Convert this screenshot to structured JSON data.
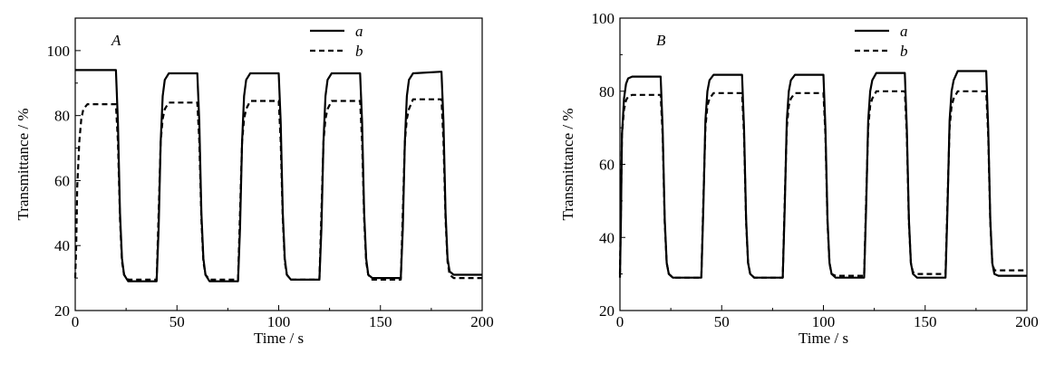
{
  "chart_data": [
    {
      "type": "line",
      "panel_label": "A",
      "xlabel": "Time / s",
      "ylabel": "Transmittance / %",
      "xlim": [
        0,
        200
      ],
      "ylim": [
        20,
        110
      ],
      "xticks": [
        0,
        50,
        100,
        150,
        200
      ],
      "yticks": [
        20,
        40,
        60,
        80,
        100
      ],
      "legend_position": "top-right",
      "series": [
        {
          "name": "a",
          "line_style": "solid",
          "x": [
            0,
            20,
            21,
            22,
            23,
            24,
            26,
            40,
            41,
            42,
            43,
            44,
            46,
            60,
            61,
            62,
            63,
            64,
            66,
            80,
            81,
            82,
            83,
            84,
            86,
            100,
            101,
            102,
            103,
            104,
            106,
            120,
            121,
            122,
            123,
            124,
            126,
            140,
            141,
            142,
            143,
            144,
            146,
            160,
            161,
            162,
            163,
            164,
            166,
            180,
            181,
            182,
            183,
            184,
            186,
            200
          ],
          "y": [
            94,
            94,
            78,
            50,
            36,
            31,
            29,
            29,
            45,
            72,
            86,
            91,
            93,
            93,
            78,
            50,
            36,
            31,
            29,
            29,
            45,
            72,
            86,
            91,
            93,
            93,
            78,
            50,
            36,
            31,
            29.5,
            29.5,
            45,
            72,
            86,
            91,
            93,
            93,
            78,
            50,
            36,
            31,
            30,
            30,
            45,
            72,
            86,
            91,
            93,
            93.5,
            78,
            50,
            36,
            32,
            31,
            31
          ]
        },
        {
          "name": "b",
          "line_style": "dashed",
          "x": [
            0,
            0.5,
            1,
            2,
            3,
            4,
            6,
            20,
            21,
            22,
            23,
            24,
            26,
            40,
            41,
            42,
            43,
            44,
            46,
            60,
            61,
            62,
            63,
            64,
            66,
            80,
            81,
            82,
            83,
            84,
            86,
            100,
            101,
            102,
            103,
            104,
            106,
            120,
            121,
            122,
            123,
            124,
            126,
            140,
            141,
            142,
            143,
            144,
            146,
            160,
            161,
            162,
            163,
            164,
            166,
            180,
            181,
            182,
            183,
            184,
            186,
            200
          ],
          "y": [
            30,
            40,
            58,
            72,
            79,
            82,
            83.5,
            83.5,
            72,
            48,
            35,
            31,
            29.5,
            29.5,
            50,
            72,
            79,
            82,
            84,
            84,
            72,
            48,
            35,
            31,
            29.5,
            29.5,
            50,
            72,
            79,
            82,
            84.5,
            84.5,
            72,
            48,
            35,
            31,
            29.5,
            29.5,
            50,
            72,
            79,
            82,
            84.5,
            84.5,
            72,
            48,
            35,
            31,
            29.5,
            29.5,
            50,
            72,
            79,
            82,
            85,
            85,
            72,
            48,
            35,
            31,
            30,
            30
          ]
        }
      ]
    },
    {
      "type": "line",
      "panel_label": "B",
      "xlabel": "Time / s",
      "ylabel": "Transmittance / %",
      "xlim": [
        0,
        200
      ],
      "ylim": [
        20,
        100
      ],
      "xticks": [
        0,
        50,
        100,
        150,
        200
      ],
      "yticks": [
        20,
        40,
        60,
        80,
        100
      ],
      "legend_position": "top-right",
      "series": [
        {
          "name": "a",
          "line_style": "solid",
          "x": [
            0,
            0.5,
            1,
            2,
            3,
            4,
            6,
            20,
            21,
            22,
            23,
            24,
            26,
            40,
            41,
            42,
            43,
            44,
            46,
            60,
            61,
            62,
            63,
            64,
            66,
            80,
            81,
            82,
            83,
            84,
            86,
            100,
            101,
            102,
            103,
            104,
            106,
            120,
            121,
            122,
            123,
            124,
            126,
            140,
            141,
            142,
            143,
            144,
            146,
            160,
            161,
            162,
            163,
            164,
            166,
            180,
            181,
            182,
            183,
            184,
            186,
            200
          ],
          "y": [
            29,
            45,
            68,
            78,
            82,
            83.5,
            84,
            84,
            70,
            45,
            33,
            30,
            29,
            29,
            48,
            72,
            80,
            83,
            84.5,
            84.5,
            70,
            45,
            33,
            30,
            29,
            29,
            48,
            72,
            80,
            83,
            84.5,
            84.5,
            70,
            45,
            33,
            30,
            29,
            29,
            48,
            72,
            80,
            83,
            85,
            85,
            70,
            45,
            33,
            30,
            29,
            29,
            48,
            72,
            80,
            83,
            85.5,
            85.5,
            70,
            45,
            33,
            30,
            29.5,
            29.5
          ]
        },
        {
          "name": "b",
          "line_style": "dashed",
          "x": [
            0,
            0.5,
            1,
            2,
            3,
            4,
            6,
            20,
            21,
            22,
            23,
            24,
            26,
            40,
            41,
            42,
            43,
            44,
            46,
            60,
            61,
            62,
            63,
            64,
            66,
            80,
            81,
            82,
            83,
            84,
            86,
            100,
            101,
            102,
            103,
            104,
            106,
            120,
            121,
            122,
            123,
            124,
            126,
            140,
            141,
            142,
            143,
            144,
            146,
            160,
            161,
            162,
            163,
            164,
            166,
            180,
            181,
            182,
            183,
            184,
            186,
            200
          ],
          "y": [
            30,
            48,
            68,
            75,
            77.5,
            78.5,
            79,
            79,
            68,
            44,
            33,
            30,
            29,
            29,
            50,
            70,
            76,
            78,
            79.5,
            79.5,
            68,
            44,
            33,
            30,
            29,
            29,
            50,
            70,
            76,
            78,
            79.5,
            79.5,
            68,
            44,
            33,
            30,
            29.5,
            29.5,
            50,
            70,
            76,
            78,
            80,
            80,
            68,
            44,
            33,
            30.5,
            30,
            30,
            50,
            70,
            76,
            78,
            80,
            80,
            68,
            44,
            33,
            31,
            31,
            31
          ]
        }
      ]
    }
  ]
}
